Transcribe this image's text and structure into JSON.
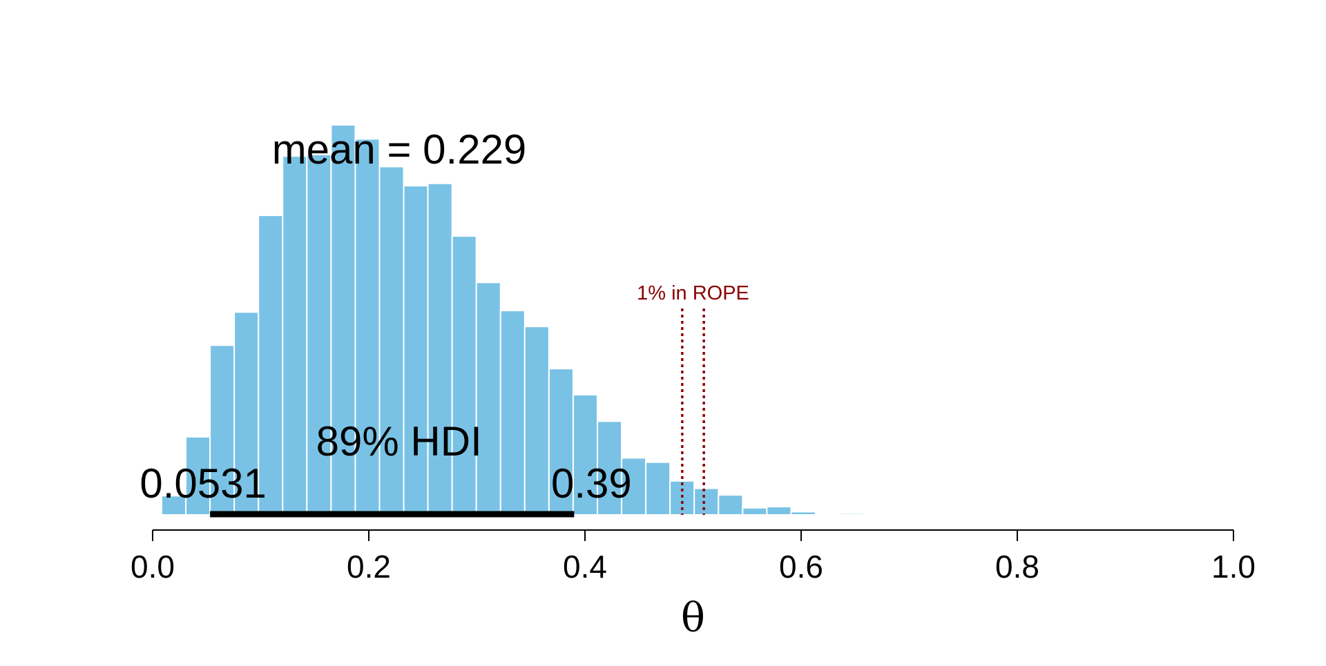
{
  "chart_data": {
    "type": "bar",
    "xlabel": "θ",
    "xlim": [
      0,
      1
    ],
    "x_ticks": [
      "0.0",
      "0.2",
      "0.4",
      "0.6",
      "0.8",
      "1.0"
    ],
    "x_tick_values": [
      0,
      0.2,
      0.4,
      0.6,
      0.8,
      1.0
    ],
    "grid": false,
    "bar_color": "#79c2e5",
    "bar_edge_color": "#ffffff",
    "bin_width": 0.0224,
    "bins": [
      {
        "x0": 0.0083,
        "height": 0.049
      },
      {
        "x0": 0.0307,
        "height": 0.2
      },
      {
        "x0": 0.0531,
        "height": 0.435
      },
      {
        "x0": 0.0755,
        "height": 0.52
      },
      {
        "x0": 0.0979,
        "height": 0.768
      },
      {
        "x0": 0.1203,
        "height": 0.92
      },
      {
        "x0": 0.1427,
        "height": 0.924
      },
      {
        "x0": 0.1651,
        "height": 1.0
      },
      {
        "x0": 0.1875,
        "height": 0.964
      },
      {
        "x0": 0.2099,
        "height": 0.893
      },
      {
        "x0": 0.2323,
        "height": 0.844
      },
      {
        "x0": 0.2547,
        "height": 0.85
      },
      {
        "x0": 0.2771,
        "height": 0.715
      },
      {
        "x0": 0.2995,
        "height": 0.596
      },
      {
        "x0": 0.3219,
        "height": 0.524
      },
      {
        "x0": 0.3443,
        "height": 0.483
      },
      {
        "x0": 0.3667,
        "height": 0.375
      },
      {
        "x0": 0.3891,
        "height": 0.308
      },
      {
        "x0": 0.4115,
        "height": 0.24
      },
      {
        "x0": 0.4339,
        "height": 0.146
      },
      {
        "x0": 0.4563,
        "height": 0.135
      },
      {
        "x0": 0.4787,
        "height": 0.087
      },
      {
        "x0": 0.5011,
        "height": 0.068
      },
      {
        "x0": 0.5235,
        "height": 0.051
      },
      {
        "x0": 0.5459,
        "height": 0.018
      },
      {
        "x0": 0.5683,
        "height": 0.021
      },
      {
        "x0": 0.5907,
        "height": 0.008
      },
      {
        "x0": 0.6131,
        "height": 0.003
      },
      {
        "x0": 0.6355,
        "height": 0.004
      },
      {
        "x0": 0.6579,
        "height": 0.0012
      },
      {
        "x0": 0.6803,
        "height": 0.0006
      }
    ],
    "mean_label": "mean = 0.229",
    "hdi": {
      "label": "89% HDI",
      "low": 0.0531,
      "high": 0.39,
      "low_label": "0.0531",
      "high_label": "0.39"
    },
    "rope": {
      "low": 0.49,
      "high": 0.51,
      "label": "1% in ROPE",
      "color": "#8b0000"
    }
  }
}
